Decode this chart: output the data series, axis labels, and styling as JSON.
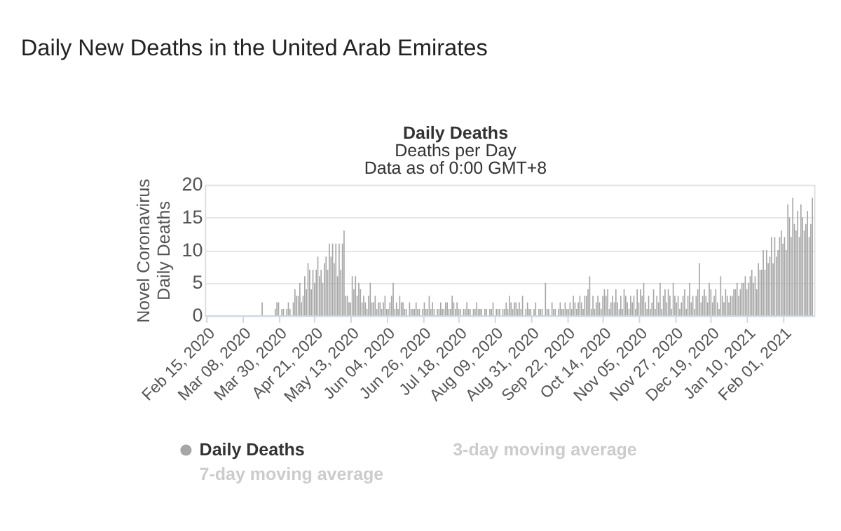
{
  "chart_data": {
    "type": "bar",
    "title": "Daily New Deaths in the United Arab Emirates",
    "subtitle": "Daily Deaths",
    "ylabel": "Novel Coronavirus\nDaily Deaths",
    "annotations": [
      "Deaths per Day",
      "Data as of 0:00 GMT+8",
      "3-day moving average",
      "7-day moving average"
    ],
    "x": [
      "2020-02-15",
      "2020-02-16",
      "2020-02-17",
      "2020-02-18",
      "2020-02-19",
      "2020-02-20",
      "2020-02-21",
      "2020-02-22",
      "2020-02-23",
      "2020-02-24",
      "2020-02-25",
      "2020-02-26",
      "2020-02-27",
      "2020-02-28",
      "2020-02-29",
      "2020-03-01",
      "2020-03-02",
      "2020-03-03",
      "2020-03-04",
      "2020-03-05",
      "2020-03-06",
      "2020-03-07",
      "2020-03-08",
      "2020-03-09",
      "2020-03-10",
      "2020-03-11",
      "2020-03-12",
      "2020-03-13",
      "2020-03-14",
      "2020-03-15",
      "2020-03-16",
      "2020-03-17",
      "2020-03-18",
      "2020-03-19",
      "2020-03-20",
      "2020-03-21",
      "2020-03-22",
      "2020-03-23",
      "2020-03-24",
      "2020-03-25",
      "2020-03-26",
      "2020-03-27",
      "2020-03-28",
      "2020-03-29",
      "2020-03-30",
      "2020-03-31",
      "2020-04-01",
      "2020-04-02",
      "2020-04-03",
      "2020-04-04",
      "2020-04-05",
      "2020-04-06",
      "2020-04-07",
      "2020-04-08",
      "2020-04-09",
      "2020-04-10",
      "2020-04-11",
      "2020-04-12",
      "2020-04-13",
      "2020-04-14",
      "2020-04-15",
      "2020-04-16",
      "2020-04-17",
      "2020-04-18",
      "2020-04-19",
      "2020-04-20",
      "2020-04-21",
      "2020-04-22",
      "2020-04-23",
      "2020-04-24",
      "2020-04-25",
      "2020-04-26",
      "2020-04-27",
      "2020-04-28",
      "2020-04-29",
      "2020-04-30",
      "2020-05-01",
      "2020-05-02",
      "2020-05-03",
      "2020-05-04",
      "2020-05-05",
      "2020-05-06",
      "2020-05-07",
      "2020-05-08",
      "2020-05-09",
      "2020-05-10",
      "2020-05-11",
      "2020-05-12",
      "2020-05-13",
      "2020-05-14",
      "2020-05-15",
      "2020-05-16",
      "2020-05-17",
      "2020-05-18",
      "2020-05-19",
      "2020-05-20",
      "2020-05-21",
      "2020-05-22",
      "2020-05-23",
      "2020-05-24",
      "2020-05-25",
      "2020-05-26",
      "2020-05-27",
      "2020-05-28",
      "2020-05-29",
      "2020-05-30",
      "2020-05-31",
      "2020-06-01",
      "2020-06-02",
      "2020-06-03",
      "2020-06-04",
      "2020-06-05",
      "2020-06-06",
      "2020-06-07",
      "2020-06-08",
      "2020-06-09",
      "2020-06-10",
      "2020-06-11",
      "2020-06-12",
      "2020-06-13",
      "2020-06-14",
      "2020-06-15",
      "2020-06-16",
      "2020-06-17",
      "2020-06-18",
      "2020-06-19",
      "2020-06-20",
      "2020-06-21",
      "2020-06-22",
      "2020-06-23",
      "2020-06-24",
      "2020-06-25",
      "2020-06-26",
      "2020-06-27",
      "2020-06-28",
      "2020-06-29",
      "2020-06-30",
      "2020-07-01",
      "2020-07-02",
      "2020-07-03",
      "2020-07-04",
      "2020-07-05",
      "2020-07-06",
      "2020-07-07",
      "2020-07-08",
      "2020-07-09",
      "2020-07-10",
      "2020-07-11",
      "2020-07-12",
      "2020-07-13",
      "2020-07-14",
      "2020-07-15",
      "2020-07-16",
      "2020-07-17",
      "2020-07-18",
      "2020-07-19",
      "2020-07-20",
      "2020-07-21",
      "2020-07-22",
      "2020-07-23",
      "2020-07-24",
      "2020-07-25",
      "2020-07-26",
      "2020-07-27",
      "2020-07-28",
      "2020-07-29",
      "2020-07-30",
      "2020-07-31",
      "2020-08-01",
      "2020-08-02",
      "2020-08-03",
      "2020-08-04",
      "2020-08-05",
      "2020-08-06",
      "2020-08-07",
      "2020-08-08",
      "2020-08-09",
      "2020-08-10",
      "2020-08-11",
      "2020-08-12",
      "2020-08-13",
      "2020-08-14",
      "2020-08-15",
      "2020-08-16",
      "2020-08-17",
      "2020-08-18",
      "2020-08-19",
      "2020-08-20",
      "2020-08-21",
      "2020-08-22",
      "2020-08-23",
      "2020-08-24",
      "2020-08-25",
      "2020-08-26",
      "2020-08-27",
      "2020-08-28",
      "2020-08-29",
      "2020-08-30",
      "2020-08-31",
      "2020-09-01",
      "2020-09-02",
      "2020-09-03",
      "2020-09-04",
      "2020-09-05",
      "2020-09-06",
      "2020-09-07",
      "2020-09-08",
      "2020-09-09",
      "2020-09-10",
      "2020-09-11",
      "2020-09-12",
      "2020-09-13",
      "2020-09-14",
      "2020-09-15",
      "2020-09-16",
      "2020-09-17",
      "2020-09-18",
      "2020-09-19",
      "2020-09-20",
      "2020-09-21",
      "2020-09-22",
      "2020-09-23",
      "2020-09-24",
      "2020-09-25",
      "2020-09-26",
      "2020-09-27",
      "2020-09-28",
      "2020-09-29",
      "2020-09-30",
      "2020-10-01",
      "2020-10-02",
      "2020-10-03",
      "2020-10-04",
      "2020-10-05",
      "2020-10-06",
      "2020-10-07",
      "2020-10-08",
      "2020-10-09",
      "2020-10-10",
      "2020-10-11",
      "2020-10-12",
      "2020-10-13",
      "2020-10-14",
      "2020-10-15",
      "2020-10-16",
      "2020-10-17",
      "2020-10-18",
      "2020-10-19",
      "2020-10-20",
      "2020-10-21",
      "2020-10-22",
      "2020-10-23",
      "2020-10-24",
      "2020-10-25",
      "2020-10-26",
      "2020-10-27",
      "2020-10-28",
      "2020-10-29",
      "2020-10-30",
      "2020-10-31",
      "2020-11-01",
      "2020-11-02",
      "2020-11-03",
      "2020-11-04",
      "2020-11-05",
      "2020-11-06",
      "2020-11-07",
      "2020-11-08",
      "2020-11-09",
      "2020-11-10",
      "2020-11-11",
      "2020-11-12",
      "2020-11-13",
      "2020-11-14",
      "2020-11-15",
      "2020-11-16",
      "2020-11-17",
      "2020-11-18",
      "2020-11-19",
      "2020-11-20",
      "2020-11-21",
      "2020-11-22",
      "2020-11-23",
      "2020-11-24",
      "2020-11-25",
      "2020-11-26",
      "2020-11-27",
      "2020-11-28",
      "2020-11-29",
      "2020-11-30",
      "2020-12-01",
      "2020-12-02",
      "2020-12-03",
      "2020-12-04",
      "2020-12-05",
      "2020-12-06",
      "2020-12-07",
      "2020-12-08",
      "2020-12-09",
      "2020-12-10",
      "2020-12-11",
      "2020-12-12",
      "2020-12-13",
      "2020-12-14",
      "2020-12-15",
      "2020-12-16",
      "2020-12-17",
      "2020-12-18",
      "2020-12-19",
      "2020-12-20",
      "2020-12-21",
      "2020-12-22",
      "2020-12-23",
      "2020-12-24",
      "2020-12-25",
      "2020-12-26",
      "2020-12-27",
      "2020-12-28",
      "2020-12-29",
      "2020-12-30",
      "2020-12-31",
      "2021-01-01",
      "2021-01-02",
      "2021-01-03",
      "2021-01-04",
      "2021-01-05",
      "2021-01-06",
      "2021-01-07",
      "2021-01-08",
      "2021-01-09",
      "2021-01-10",
      "2021-01-11",
      "2021-01-12",
      "2021-01-13",
      "2021-01-14",
      "2021-01-15",
      "2021-01-16",
      "2021-01-17",
      "2021-01-18",
      "2021-01-19",
      "2021-01-20",
      "2021-01-21",
      "2021-01-22",
      "2021-01-23",
      "2021-01-24",
      "2021-01-25",
      "2021-01-26",
      "2021-01-27",
      "2021-01-28",
      "2021-01-29",
      "2021-01-30",
      "2021-01-31",
      "2021-02-01",
      "2021-02-02",
      "2021-02-03",
      "2021-02-04",
      "2021-02-05",
      "2021-02-06",
      "2021-02-07",
      "2021-02-08",
      "2021-02-09",
      "2021-02-10",
      "2021-02-11",
      "2021-02-12",
      "2021-02-13",
      "2021-02-14",
      "2021-02-15",
      "2021-02-16",
      "2021-02-17",
      "2021-02-18",
      "2021-02-19"
    ],
    "series": [
      {
        "name": "Daily Deaths",
        "color": "#a6a6a6",
        "values": [
          0,
          0,
          0,
          0,
          0,
          0,
          0,
          0,
          0,
          0,
          0,
          0,
          0,
          0,
          0,
          0,
          0,
          0,
          0,
          0,
          0,
          0,
          0,
          0,
          0,
          0,
          0,
          0,
          0,
          0,
          0,
          0,
          0,
          0,
          2,
          0,
          0,
          0,
          0,
          0,
          0,
          0,
          1,
          2,
          2,
          0,
          1,
          1,
          0,
          1,
          2,
          1,
          0,
          2,
          4,
          3,
          3,
          5,
          2,
          3,
          6,
          4,
          8,
          7,
          4,
          7,
          5,
          7,
          9,
          6,
          7,
          5,
          8,
          9,
          7,
          11,
          9,
          11,
          8,
          11,
          6,
          11,
          7,
          11,
          13,
          3,
          3,
          2,
          2,
          6,
          4,
          6,
          3,
          5,
          4,
          2,
          3,
          2,
          1,
          3,
          5,
          2,
          2,
          3,
          1,
          2,
          2,
          1,
          2,
          3,
          1,
          1,
          2,
          3,
          5,
          1,
          2,
          1,
          3,
          2,
          2,
          1,
          1,
          0,
          2,
          1,
          1,
          1,
          2,
          1,
          1,
          0,
          1,
          2,
          1,
          1,
          3,
          1,
          2,
          1,
          0,
          1,
          1,
          2,
          1,
          1,
          2,
          2,
          1,
          1,
          3,
          2,
          1,
          2,
          1,
          1,
          0,
          1,
          1,
          2,
          1,
          1,
          0,
          1,
          1,
          2,
          1,
          1,
          1,
          0,
          1,
          1,
          0,
          1,
          1,
          2,
          0,
          1,
          1,
          1,
          0,
          1,
          1,
          2,
          1,
          3,
          2,
          1,
          2,
          2,
          1,
          2,
          1,
          3,
          0,
          1,
          2,
          1,
          1,
          0,
          1,
          2,
          0,
          1,
          1,
          1,
          0,
          5,
          1,
          1,
          0,
          2,
          1,
          1,
          0,
          1,
          2,
          1,
          1,
          2,
          1,
          1,
          2,
          1,
          3,
          2,
          1,
          2,
          3,
          2,
          1,
          3,
          3,
          4,
          6,
          1,
          3,
          1,
          2,
          3,
          2,
          1,
          3,
          4,
          3,
          4,
          1,
          2,
          3,
          2,
          4,
          2,
          1,
          3,
          1,
          4,
          3,
          2,
          1,
          3,
          2,
          3,
          1,
          4,
          2,
          4,
          3,
          5,
          2,
          1,
          3,
          1,
          2,
          4,
          1,
          3,
          2,
          5,
          1,
          3,
          4,
          2,
          4,
          3,
          1,
          5,
          3,
          2,
          3,
          1,
          2,
          3,
          4,
          1,
          3,
          5,
          2,
          3,
          1,
          3,
          4,
          8,
          2,
          3,
          4,
          3,
          2,
          5,
          4,
          2,
          3,
          4,
          2,
          1,
          6,
          3,
          2,
          4,
          3,
          2,
          3,
          3,
          4,
          4,
          5,
          3,
          4,
          5,
          5,
          6,
          4,
          5,
          6,
          7,
          5,
          6,
          4,
          8,
          7,
          7,
          10,
          7,
          10,
          8,
          9,
          12,
          8,
          12,
          9,
          10,
          12,
          13,
          11,
          12,
          10,
          17,
          15,
          12,
          18,
          14,
          13,
          16,
          12,
          17,
          15,
          13,
          14,
          16,
          12,
          14,
          18
        ]
      }
    ],
    "xlim": [
      "2020-02-14",
      "2021-02-20"
    ],
    "xticks": [
      {
        "value": "2020-02-15",
        "label": "Feb 15, 2020"
      },
      {
        "value": "2020-03-08",
        "label": "Mar 08, 2020"
      },
      {
        "value": "2020-03-30",
        "label": "Mar 30, 2020"
      },
      {
        "value": "2020-04-21",
        "label": "Apr 21, 2020"
      },
      {
        "value": "2020-05-13",
        "label": "May 13, 2020"
      },
      {
        "value": "2020-06-04",
        "label": "Jun 04, 2020"
      },
      {
        "value": "2020-06-26",
        "label": "Jun 26, 2020"
      },
      {
        "value": "2020-07-18",
        "label": "Jul 18, 2020"
      },
      {
        "value": "2020-08-09",
        "label": "Aug 09, 2020"
      },
      {
        "value": "2020-08-31",
        "label": "Aug 31, 2020"
      },
      {
        "value": "2020-09-22",
        "label": "Sep 22, 2020"
      },
      {
        "value": "2020-10-14",
        "label": "Oct 14, 2020"
      },
      {
        "value": "2020-11-05",
        "label": "Nov 05, 2020"
      },
      {
        "value": "2020-11-27",
        "label": "Nov 27, 2020"
      },
      {
        "value": "2020-12-19",
        "label": "Dec 19, 2020"
      },
      {
        "value": "2021-01-10",
        "label": "Jan 10, 2021"
      },
      {
        "value": "2021-02-01",
        "label": "Feb 01, 2021"
      }
    ],
    "ylim": [
      0,
      20
    ],
    "yticks": [
      0,
      5,
      10,
      15,
      20
    ],
    "grid": "y",
    "legend": "bottom"
  }
}
